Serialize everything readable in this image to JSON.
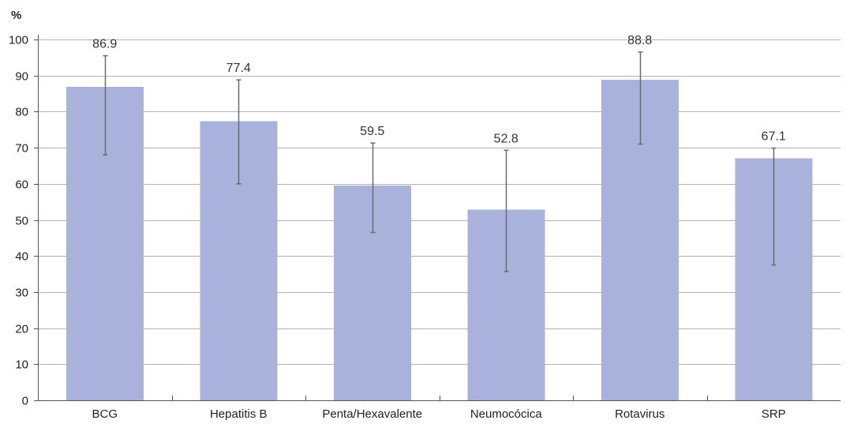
{
  "colors": {
    "bar": "#a8b2da",
    "error_bar": "#6b6b6b",
    "grid": "#b3b3b3"
  },
  "chart_data": {
    "type": "bar",
    "title": "",
    "xlabel": "",
    "ylabel": "%",
    "ylim": [
      0,
      100
    ],
    "yticks": [
      0,
      10,
      20,
      30,
      40,
      50,
      60,
      70,
      80,
      90,
      100
    ],
    "grid": true,
    "legend": "none",
    "categories": [
      "BCG",
      "Hepatitis B",
      "Penta/Hexavalente",
      "Neumocócica",
      "Rotavirus",
      "SRP"
    ],
    "values": [
      86.9,
      77.4,
      59.5,
      52.8,
      88.8,
      67.1
    ],
    "data_labels": [
      "86.9",
      "77.4",
      "59.5",
      "52.8",
      "88.8",
      "67.1"
    ],
    "error_low": [
      68,
      60,
      46.5,
      35.7,
      71,
      37.5
    ],
    "error_high": [
      95.5,
      88.8,
      71.3,
      69.3,
      96.5,
      69.9
    ]
  }
}
